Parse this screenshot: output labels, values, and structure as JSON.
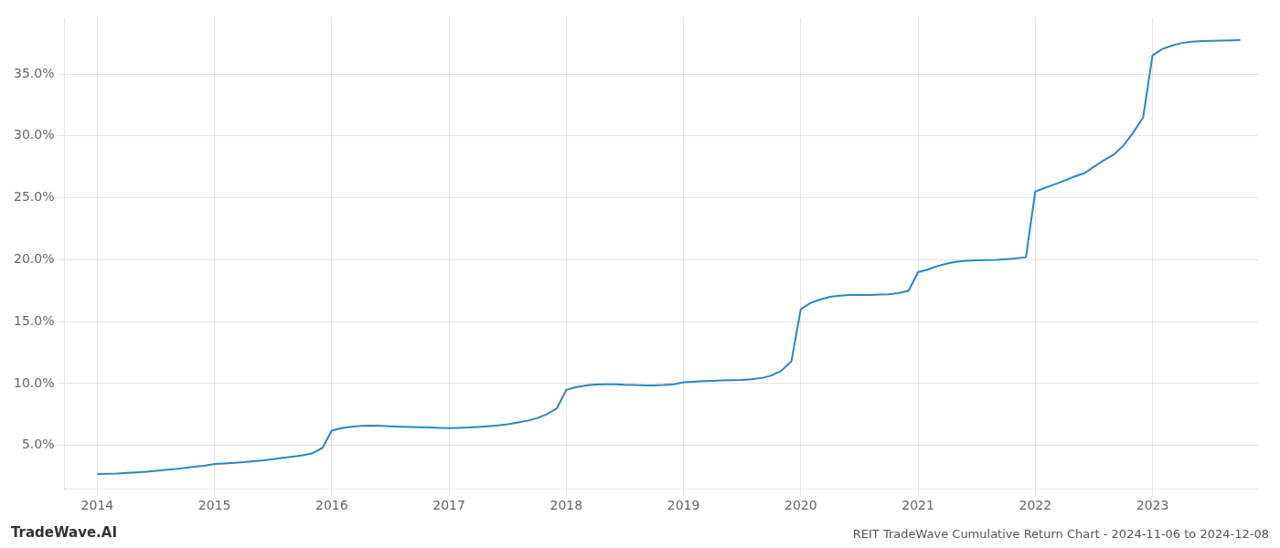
{
  "chart_data": {
    "type": "line",
    "title": "REIT TradeWave Cumulative Return Chart - 2024-11-06 to 2024-12-08",
    "annotations": [
      "TradeWave.AI"
    ],
    "color": "#2e86c1",
    "grid": true,
    "x": [
      2014.0,
      2014.08,
      2014.17,
      2014.25,
      2014.33,
      2014.42,
      2014.5,
      2014.58,
      2014.67,
      2014.75,
      2014.83,
      2014.92,
      2015.0,
      2015.08,
      2015.17,
      2015.25,
      2015.33,
      2015.42,
      2015.5,
      2015.58,
      2015.67,
      2015.75,
      2015.83,
      2015.92,
      2016.0,
      2016.08,
      2016.17,
      2016.25,
      2016.33,
      2016.42,
      2016.5,
      2016.58,
      2016.67,
      2016.75,
      2016.83,
      2016.92,
      2017.0,
      2017.08,
      2017.17,
      2017.25,
      2017.33,
      2017.42,
      2017.5,
      2017.58,
      2017.67,
      2017.75,
      2017.83,
      2017.92,
      2018.0,
      2018.08,
      2018.17,
      2018.25,
      2018.33,
      2018.42,
      2018.5,
      2018.58,
      2018.67,
      2018.75,
      2018.83,
      2018.92,
      2019.0,
      2019.08,
      2019.17,
      2019.25,
      2019.33,
      2019.42,
      2019.5,
      2019.58,
      2019.67,
      2019.75,
      2019.83,
      2019.92,
      2020.0,
      2020.08,
      2020.17,
      2020.25,
      2020.33,
      2020.42,
      2020.5,
      2020.58,
      2020.67,
      2020.75,
      2020.83,
      2020.92,
      2021.0,
      2021.08,
      2021.17,
      2021.25,
      2021.33,
      2021.42,
      2021.5,
      2021.58,
      2021.67,
      2021.75,
      2021.83,
      2021.92,
      2022.0,
      2022.08,
      2022.17,
      2022.25,
      2022.33,
      2022.42,
      2022.5,
      2022.58,
      2022.67,
      2022.75,
      2022.83,
      2022.92,
      2023.0,
      2023.08,
      2023.17,
      2023.25,
      2023.33,
      2023.42,
      2023.5,
      2023.58,
      2023.67,
      2023.75
    ],
    "values": [
      2.7,
      2.72,
      2.74,
      2.78,
      2.82,
      2.88,
      2.95,
      3.02,
      3.1,
      3.2,
      3.28,
      3.38,
      3.5,
      3.54,
      3.6,
      3.65,
      3.72,
      3.8,
      3.9,
      4.0,
      4.1,
      4.2,
      4.35,
      4.8,
      6.2,
      6.4,
      6.52,
      6.58,
      6.6,
      6.58,
      6.55,
      6.52,
      6.5,
      6.48,
      6.45,
      6.42,
      6.4,
      6.42,
      6.45,
      6.5,
      6.55,
      6.62,
      6.72,
      6.85,
      7.0,
      7.2,
      7.5,
      8.0,
      9.5,
      9.7,
      9.85,
      9.92,
      9.95,
      9.95,
      9.9,
      9.88,
      9.85,
      9.85,
      9.88,
      9.95,
      10.1,
      10.15,
      10.2,
      10.22,
      10.25,
      10.28,
      10.3,
      10.35,
      10.45,
      10.65,
      11.0,
      11.8,
      16.0,
      16.5,
      16.8,
      17.0,
      17.1,
      17.15,
      17.15,
      17.15,
      17.18,
      17.2,
      17.3,
      17.5,
      19.0,
      19.2,
      19.5,
      19.7,
      19.85,
      19.92,
      19.95,
      19.98,
      20.0,
      20.05,
      20.1,
      20.2,
      25.5,
      25.8,
      26.1,
      26.4,
      26.7,
      27.0,
      27.5,
      28.0,
      28.5,
      29.2,
      30.2,
      31.5,
      36.5,
      37.0,
      37.3,
      37.5,
      37.6,
      37.65,
      37.68,
      37.7,
      37.72,
      37.75
    ],
    "xlim": [
      2013.72,
      2023.9
    ],
    "xticks": [
      2014,
      2015,
      2016,
      2017,
      2018,
      2019,
      2020,
      2021,
      2022,
      2023
    ],
    "ylim": [
      1.5,
      39.5
    ],
    "yticks": [
      {
        "value": 5.0,
        "label": "5.0%"
      },
      {
        "value": 10.0,
        "label": "10.0%"
      },
      {
        "value": 15.0,
        "label": "15.0%"
      },
      {
        "value": 20.0,
        "label": "20.0%"
      },
      {
        "value": 25.0,
        "label": "25.0%"
      },
      {
        "value": 30.0,
        "label": "30.0%"
      },
      {
        "value": 35.0,
        "label": "35.0%"
      }
    ]
  }
}
